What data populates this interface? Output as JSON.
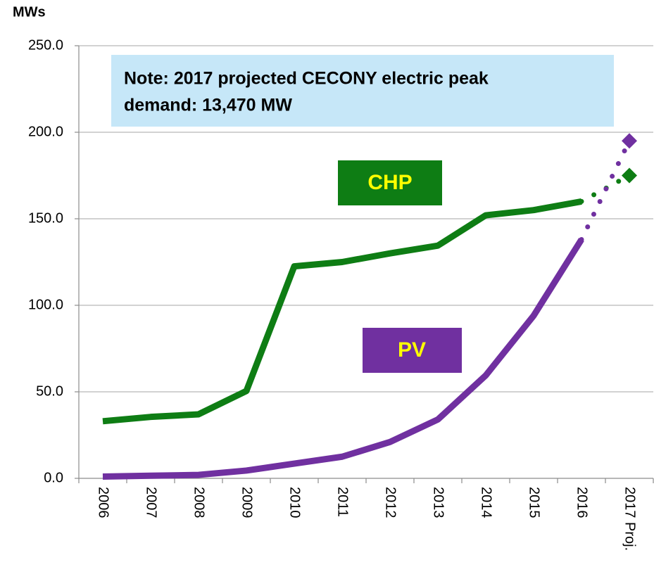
{
  "chart_data": {
    "type": "line",
    "y_axis_label": "MWs",
    "categories": [
      "2006",
      "2007",
      "2008",
      "2009",
      "2010",
      "2011",
      "2012",
      "2013",
      "2014",
      "2015",
      "2016",
      "2017 Proj."
    ],
    "series": [
      {
        "name": "CHP",
        "color": "#0e7d14",
        "values": [
          33,
          35.5,
          37,
          50.5,
          122.5,
          125,
          130,
          134.5,
          152,
          155,
          160,
          175
        ]
      },
      {
        "name": "PV",
        "color": "#7030a0",
        "values": [
          1,
          1.5,
          2,
          4.5,
          8.5,
          12.5,
          21,
          34,
          59.5,
          94,
          138,
          195
        ]
      }
    ],
    "ylim": [
      0,
      250
    ],
    "yticks": [
      {
        "value": 0,
        "label": "0.0"
      },
      {
        "value": 50,
        "label": "50.0"
      },
      {
        "value": 100,
        "label": "100.0"
      },
      {
        "value": 150,
        "label": "150.0"
      },
      {
        "value": 200,
        "label": "200.0"
      },
      {
        "value": 250,
        "label": "250.0"
      }
    ],
    "grid": true,
    "note": [
      "Note: 2017 projected CECONY electric peak",
      "demand: 13,470 MW"
    ]
  }
}
